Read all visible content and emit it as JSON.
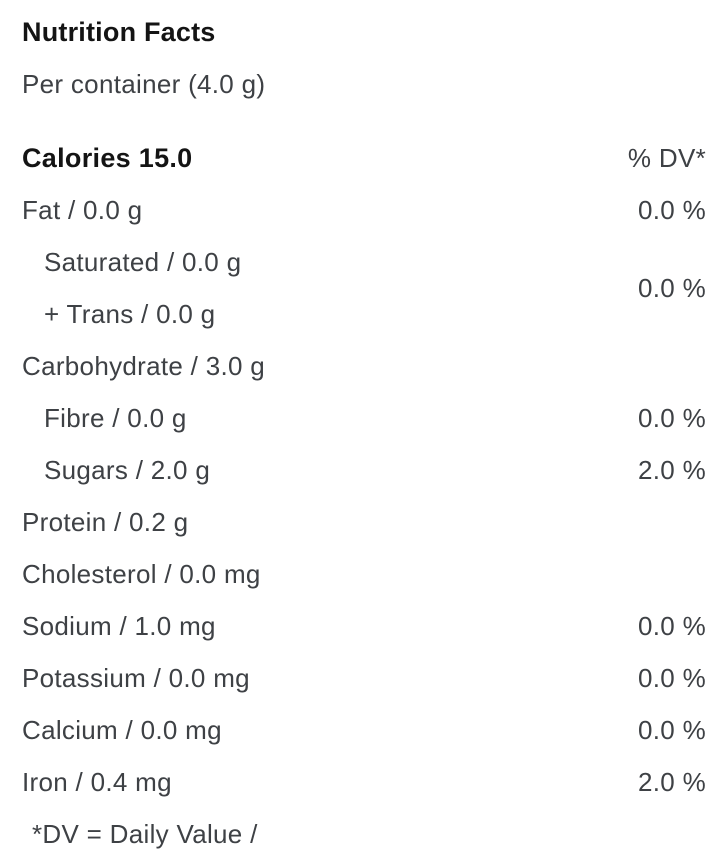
{
  "colors": {
    "text_primary": "#141414",
    "text_secondary": "#3e4145",
    "background": "#ffffff"
  },
  "panel": {
    "title": "Nutrition Facts",
    "serving": "Per container (4.0 g)",
    "calories": "Calories 15.0",
    "dv_header": "% DV*",
    "saturated_trans_dv": "0.0 %",
    "footnote": "*DV = Daily Value /"
  },
  "nutrients": [
    {
      "label": "Fat / 0.0 g",
      "dv": "0.0 %",
      "indent": 0
    },
    {
      "label": "Saturated / 0.0 g",
      "dv": "",
      "indent": 1
    },
    {
      "label": "+ Trans / 0.0 g",
      "dv": "",
      "indent": 1
    },
    {
      "label": "Carbohydrate / 3.0 g",
      "dv": "",
      "indent": 0
    },
    {
      "label": "Fibre / 0.0 g",
      "dv": "0.0 %",
      "indent": 1
    },
    {
      "label": "Sugars / 2.0 g",
      "dv": "2.0 %",
      "indent": 1
    },
    {
      "label": "Protein / 0.2 g",
      "dv": "",
      "indent": 0
    },
    {
      "label": "Cholesterol / 0.0 mg",
      "dv": "",
      "indent": 0
    },
    {
      "label": "Sodium / 1.0 mg",
      "dv": "0.0 %",
      "indent": 0
    },
    {
      "label": "Potassium / 0.0 mg",
      "dv": "0.0 %",
      "indent": 0
    },
    {
      "label": "Calcium / 0.0 mg",
      "dv": "0.0 %",
      "indent": 0
    },
    {
      "label": "Iron / 0.4 mg",
      "dv": "2.0 %",
      "indent": 0
    }
  ]
}
